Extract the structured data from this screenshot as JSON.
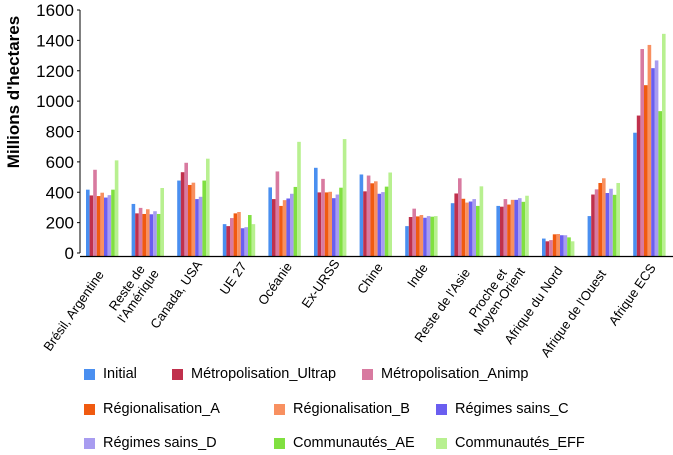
{
  "chart_data": {
    "type": "bar",
    "title": "",
    "xlabel": "",
    "ylabel": "Millions d'hectares",
    "ylim": [
      0,
      1600
    ],
    "yticks": [
      0,
      200,
      400,
      600,
      800,
      1000,
      1200,
      1400,
      1600
    ],
    "grid": false,
    "legend_position": "bottom",
    "categories": [
      [
        "Brésil, Argentine"
      ],
      [
        "Reste de",
        "l'Amérique"
      ],
      [
        "Canada, USA"
      ],
      [
        "UE 27"
      ],
      [
        "Océanie"
      ],
      [
        "Ex-URSS"
      ],
      [
        "Chine"
      ],
      [
        "Inde"
      ],
      [
        "Reste de l'Asie"
      ],
      [
        "Proche et",
        "Moyen-Orient"
      ],
      [
        "Afrique du Nord"
      ],
      [
        "Afrique de l'Ouest"
      ],
      [
        "Afrique ECS"
      ]
    ],
    "series": [
      {
        "name": "Initial",
        "color": "#4a8ff0",
        "values": [
          417,
          323,
          477,
          190,
          432,
          561,
          517,
          177,
          328,
          310,
          95,
          243,
          792
        ]
      },
      {
        "name": "Métropolisation_Ultrap",
        "color": "#c0304c",
        "values": [
          379,
          261,
          532,
          177,
          355,
          399,
          406,
          237,
          392,
          305,
          77,
          385,
          905
        ]
      },
      {
        "name": "Métropolisation_Animp",
        "color": "#d87aa0",
        "values": [
          548,
          297,
          594,
          230,
          537,
          488,
          510,
          292,
          492,
          355,
          85,
          419,
          1343
        ]
      },
      {
        "name": "Régionalisation_A",
        "color": "#f05a10",
        "values": [
          375,
          257,
          448,
          261,
          310,
          399,
          459,
          241,
          357,
          319,
          123,
          461,
          1105
        ]
      },
      {
        "name": "Régionalisation_B",
        "color": "#f89060",
        "values": [
          397,
          288,
          463,
          270,
          348,
          403,
          472,
          250,
          332,
          350,
          125,
          492,
          1370
        ]
      },
      {
        "name": "Régimes sains_C",
        "color": "#6a5ef0",
        "values": [
          365,
          255,
          355,
          163,
          359,
          361,
          390,
          232,
          339,
          350,
          117,
          395,
          1217
        ]
      },
      {
        "name": "Régimes sains_D",
        "color": "#a89cf0",
        "values": [
          381,
          275,
          370,
          170,
          390,
          385,
          401,
          243,
          355,
          361,
          117,
          423,
          1268
        ]
      },
      {
        "name": "Communautés_AE",
        "color": "#80e040",
        "values": [
          417,
          257,
          477,
          250,
          435,
          430,
          437,
          239,
          310,
          337,
          103,
          383,
          934
        ]
      },
      {
        "name": "Communautés_EFF",
        "color": "#b8f090",
        "values": [
          610,
          428,
          621,
          190,
          732,
          750,
          530,
          243,
          439,
          377,
          77,
          461,
          1443
        ]
      }
    ]
  },
  "legend": {
    "rows": [
      [
        0,
        1,
        2
      ],
      [
        3,
        4,
        5
      ],
      [
        6,
        7,
        8
      ]
    ]
  }
}
